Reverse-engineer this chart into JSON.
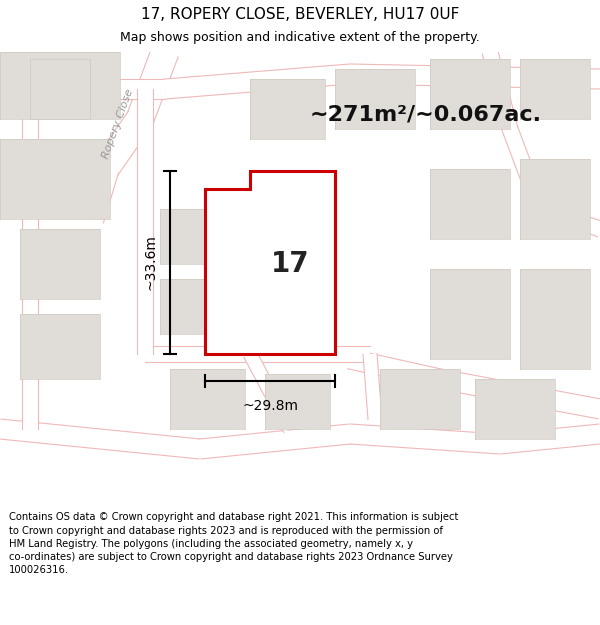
{
  "title": "17, ROPERY CLOSE, BEVERLEY, HU17 0UF",
  "subtitle": "Map shows position and indicative extent of the property.",
  "area_text": "~271m²/~0.067ac.",
  "number_label": "17",
  "dim_width": "~29.8m",
  "dim_height": "~33.6m",
  "footer": "Contains OS data © Crown copyright and database right 2021. This information is subject to Crown copyright and database rights 2023 and is reproduced with the permission of HM Land Registry. The polygons (including the associated geometry, namely x, y co-ordinates) are subject to Crown copyright and database rights 2023 Ordnance Survey 100026316.",
  "bg_color": "#ffffff",
  "map_bg": "#f5f3f0",
  "road_stroke": "#f0b8b8",
  "road_fill": "#ffffff",
  "building_fill": "#e0dcd8",
  "building_stroke": "#d0c8c0",
  "plot_fill": "#ffffff",
  "plot_edge": "#cc0000",
  "title_fontsize": 11,
  "subtitle_fontsize": 9,
  "area_fontsize": 16,
  "number_fontsize": 20,
  "dim_fontsize": 10,
  "footer_fontsize": 7.2,
  "road_label_color": "#999999",
  "road_label_fontsize": 8
}
